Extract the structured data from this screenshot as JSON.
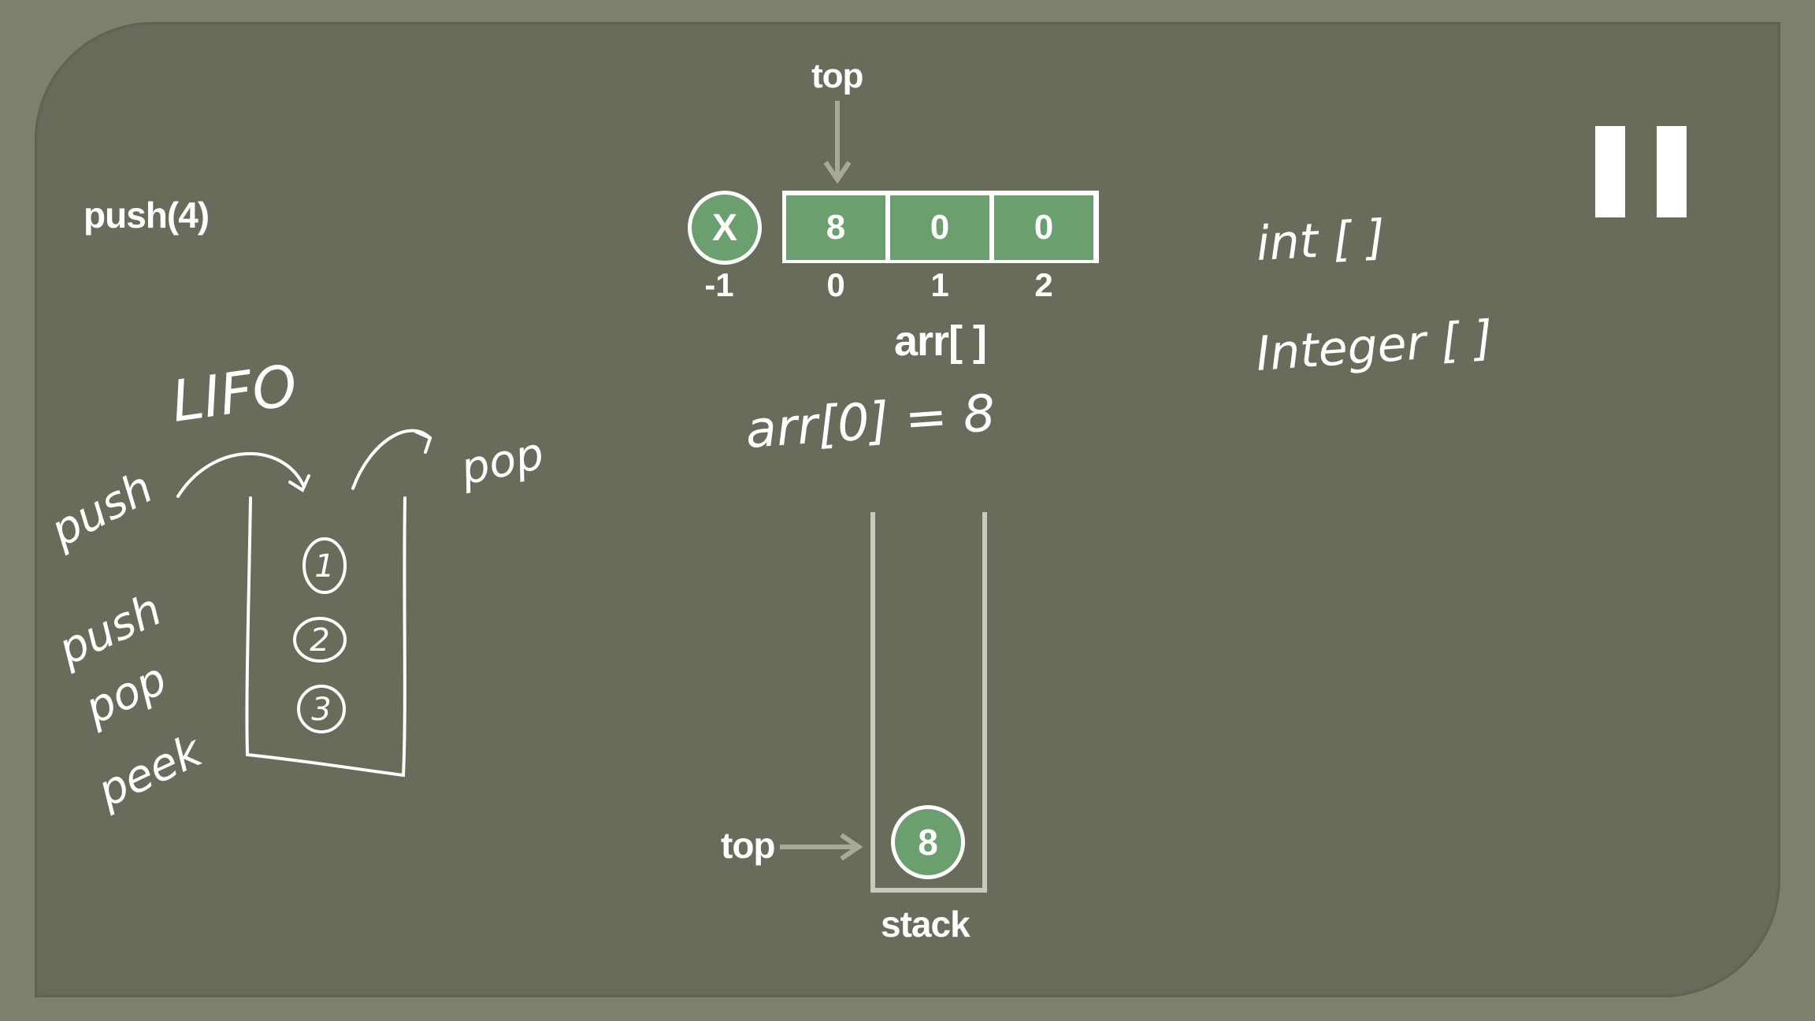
{
  "operation": "push(4)",
  "array": {
    "name": "arr[ ]",
    "top_label": "top",
    "cells": [
      "8",
      "0",
      "0"
    ],
    "indices": [
      "0",
      "1",
      "2"
    ],
    "invalid_marker": "X",
    "invalid_index": "-1"
  },
  "stack": {
    "top_label": "top",
    "items": [
      "8"
    ],
    "label": "stack"
  },
  "handwriting": {
    "lifo": "LIFO",
    "push_arrow": "push",
    "pop_arrow": "pop",
    "ops": [
      "push",
      "pop",
      "peek"
    ],
    "numbered_items": [
      "1",
      "2",
      "3"
    ],
    "assignment": "arr[0] = 8",
    "types": [
      "int [ ]",
      "Integer [ ]"
    ]
  }
}
